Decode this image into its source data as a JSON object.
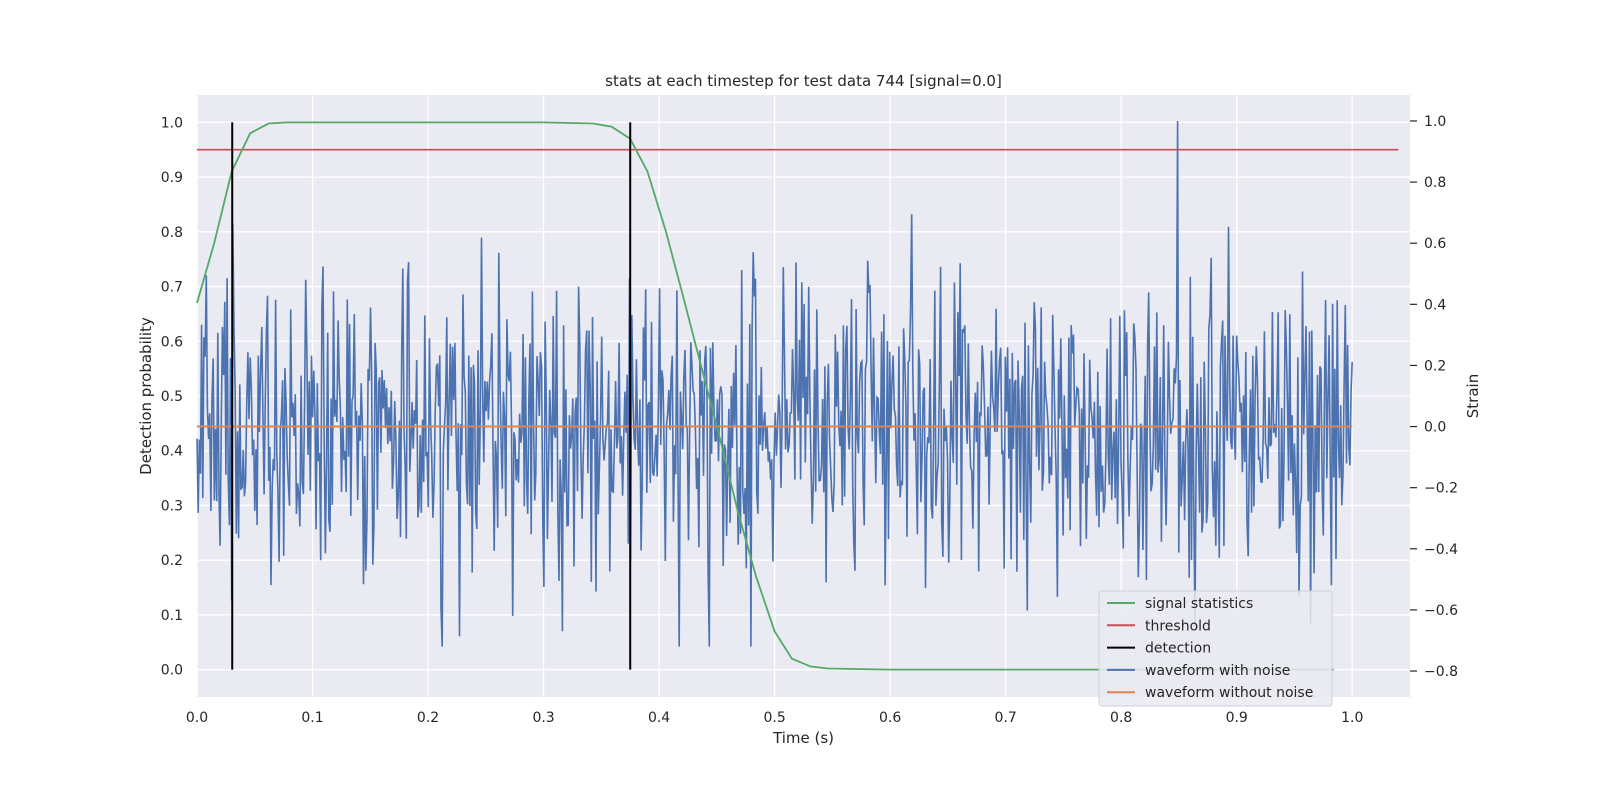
{
  "chart_data": {
    "type": "line",
    "title": "stats at each timestep for test data 744 [signal=0.0]",
    "xlabel": "Time (s)",
    "ylabel": "Detection probability",
    "y2label": "Strain",
    "xlim": [
      0.0,
      1.05
    ],
    "ylim": [
      -0.05,
      1.05
    ],
    "y2lim": [
      -0.885,
      1.085
    ],
    "xticks": [
      "0.0",
      "0.1",
      "0.2",
      "0.3",
      "0.4",
      "0.5",
      "0.6",
      "0.7",
      "0.8",
      "0.9",
      "1.0"
    ],
    "xtick_values": [
      0.0,
      0.1,
      0.2,
      0.3,
      0.4,
      0.5,
      0.6,
      0.7,
      0.8,
      0.9,
      1.0
    ],
    "yticks": [
      "0.0",
      "0.1",
      "0.2",
      "0.3",
      "0.4",
      "0.5",
      "0.6",
      "0.7",
      "0.8",
      "0.9",
      "1.0"
    ],
    "ytick_values": [
      0.0,
      0.1,
      0.2,
      0.3,
      0.4,
      0.5,
      0.6,
      0.7,
      0.8,
      0.9,
      1.0
    ],
    "y2ticks": [
      "−0.8",
      "−0.6",
      "−0.4",
      "−0.2",
      "0.0",
      "0.2",
      "0.4",
      "0.6",
      "0.8",
      "1.0"
    ],
    "y2tick_values": [
      -0.8,
      -0.6,
      -0.4,
      -0.2,
      0.0,
      0.2,
      0.4,
      0.6,
      0.8,
      1.0
    ],
    "grid": true,
    "legend_position": "bottom-right",
    "series": [
      {
        "name": "signal statistics",
        "color": "#55a868",
        "axis": "left",
        "x": [
          0.0,
          0.015,
          0.03,
          0.046,
          0.062,
          0.078,
          0.1,
          0.2,
          0.3,
          0.343,
          0.359,
          0.375,
          0.39,
          0.406,
          0.421,
          0.437,
          0.453,
          0.468,
          0.484,
          0.5,
          0.515,
          0.531,
          0.546,
          0.6,
          0.7,
          0.8,
          0.9,
          0.984
        ],
        "values": [
          0.67,
          0.78,
          0.91,
          0.98,
          0.998,
          1.0,
          1.0,
          1.0,
          1.0,
          0.998,
          0.992,
          0.97,
          0.91,
          0.8,
          0.68,
          0.55,
          0.42,
          0.29,
          0.17,
          0.07,
          0.02,
          0.006,
          0.002,
          0.0,
          0.0,
          0.0,
          0.0,
          0.0
        ]
      },
      {
        "name": "threshold",
        "color": "#c44e52",
        "axis": "left",
        "x": [
          0.0,
          1.04
        ],
        "values": [
          0.95,
          0.95
        ]
      },
      {
        "name": "detection",
        "color": "#000000",
        "axis": "left",
        "segments": [
          {
            "x": 0.0305,
            "y": [
              0.0,
              1.0
            ]
          },
          {
            "x": 0.375,
            "y": [
              0.0,
              1.0
            ]
          }
        ]
      },
      {
        "name": "waveform with noise",
        "color": "#4c72b0",
        "axis": "right",
        "samples": 1000,
        "x_range": [
          0.0,
          1.0
        ],
        "spike_x": 0.849,
        "spike_value": 1.0
      },
      {
        "name": "waveform without noise",
        "color": "#dd8452",
        "axis": "right",
        "x": [
          0.0,
          1.0
        ],
        "values": [
          0.0,
          0.0
        ]
      }
    ]
  }
}
